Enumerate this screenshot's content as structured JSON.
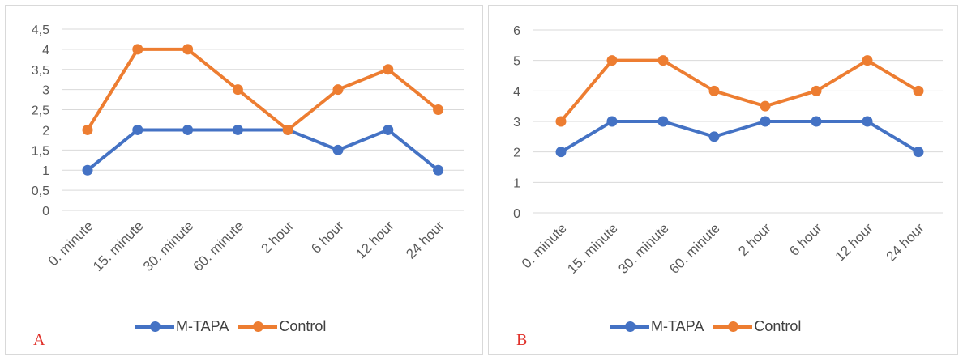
{
  "colors": {
    "m_tapa": "#4472C4",
    "control": "#ED7D31",
    "grid": "#d9d9d9",
    "label": "#e0312a"
  },
  "chart_data": [
    {
      "type": "line",
      "panel_label": "A",
      "categories": [
        "0. minute",
        "15. minute",
        "30. minute",
        "60. minute",
        "2 hour",
        "6 hour",
        "12 hour",
        "24 hour"
      ],
      "y_ticks": [
        "0",
        "0,5",
        "1",
        "1,5",
        "2",
        "2,5",
        "3",
        "3,5",
        "4",
        "4,5"
      ],
      "ylim": [
        0,
        4.5
      ],
      "grid": true,
      "legend_position": "bottom",
      "series": [
        {
          "name": "M-TAPA",
          "color": "#4472C4",
          "values": [
            1,
            2,
            2,
            2,
            2,
            1.5,
            2,
            1
          ]
        },
        {
          "name": "Control",
          "color": "#ED7D31",
          "values": [
            2,
            4,
            4,
            3,
            2,
            3,
            3.5,
            2.5
          ]
        }
      ]
    },
    {
      "type": "line",
      "panel_label": "B",
      "categories": [
        "0. minute",
        "15. minute",
        "30. minute",
        "60. minute",
        "2 hour",
        "6 hour",
        "12 hour",
        "24 hour"
      ],
      "y_ticks": [
        "0",
        "1",
        "2",
        "3",
        "4",
        "5",
        "6"
      ],
      "ylim": [
        0,
        6
      ],
      "grid": true,
      "legend_position": "bottom",
      "series": [
        {
          "name": "M-TAPA",
          "color": "#4472C4",
          "values": [
            2,
            3,
            3,
            2.5,
            3,
            3,
            3,
            2
          ]
        },
        {
          "name": "Control",
          "color": "#ED7D31",
          "values": [
            3,
            5,
            5,
            4,
            3.5,
            4,
            5,
            4
          ]
        }
      ]
    }
  ]
}
